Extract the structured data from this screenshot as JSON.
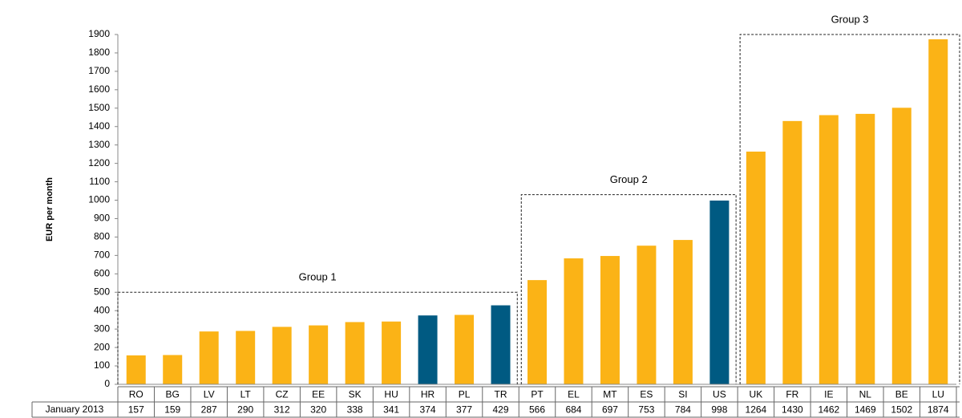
{
  "chart_data": {
    "type": "bar",
    "y_label": "EUR per month",
    "table_row_label": "January 2013",
    "categories": [
      "RO",
      "BG",
      "LV",
      "LT",
      "CZ",
      "EE",
      "SK",
      "HU",
      "HR",
      "PL",
      "TR",
      "PT",
      "EL",
      "MT",
      "ES",
      "SI",
      "US",
      "UK",
      "FR",
      "IE",
      "NL",
      "BE",
      "LU"
    ],
    "values": [
      157,
      159,
      287,
      290,
      312,
      320,
      338,
      341,
      374,
      377,
      429,
      566,
      684,
      697,
      753,
      784,
      998,
      1264,
      1430,
      1462,
      1469,
      1502,
      1874
    ],
    "colors": [
      "#fbb316",
      "#fbb316",
      "#fbb316",
      "#fbb316",
      "#fbb316",
      "#fbb316",
      "#fbb316",
      "#fbb316",
      "#005a82",
      "#fbb316",
      "#005a82",
      "#fbb316",
      "#fbb316",
      "#fbb316",
      "#fbb316",
      "#fbb316",
      "#005a82",
      "#fbb316",
      "#fbb316",
      "#fbb316",
      "#fbb316",
      "#fbb316",
      "#fbb316"
    ],
    "ylim": [
      0,
      1900
    ],
    "yticks": [
      0,
      100,
      200,
      300,
      400,
      500,
      600,
      700,
      800,
      900,
      1000,
      1100,
      1200,
      1300,
      1400,
      1500,
      1600,
      1700,
      1800,
      1900
    ],
    "groups": [
      {
        "label": "Group 1",
        "first": "RO",
        "last": "TR",
        "top": 500
      },
      {
        "label": "Group 2",
        "first": "PT",
        "last": "US",
        "top": 1030
      },
      {
        "label": "Group 3",
        "first": "UK",
        "last": "LU",
        "top": 1900
      }
    ]
  }
}
